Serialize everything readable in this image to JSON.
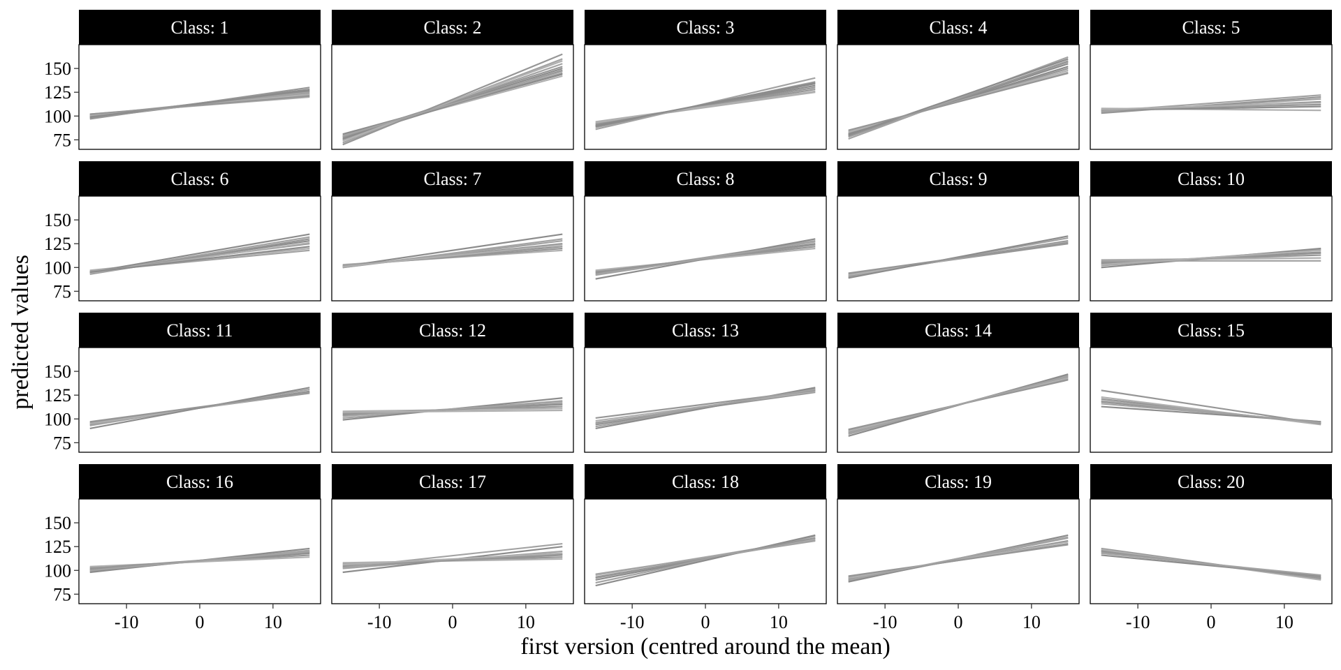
{
  "chart_data": {
    "type": "line",
    "layout": "facet-grid-4x5",
    "xlabel": "first version (centred around the mean)",
    "ylabel": "predicted values",
    "xlim": [
      -16.5,
      16.5
    ],
    "ylim": [
      65,
      175
    ],
    "x_ticks": [
      -10,
      0,
      10
    ],
    "x_tick_labels": [
      "-10",
      "0",
      "10"
    ],
    "y_ticks": [
      75,
      100,
      125,
      150
    ],
    "y_tick_labels": [
      "75",
      "100",
      "125",
      "150"
    ],
    "x_range_lines": [
      -15,
      15
    ],
    "line_colors": [
      "#8c8c8c",
      "#969696",
      "#a3a3a3",
      "#b0b0b0"
    ],
    "panels": [
      {
        "label": "Class: 1",
        "lines": [
          [
            98,
            126
          ],
          [
            100,
            124
          ],
          [
            101,
            122
          ],
          [
            102,
            120
          ],
          [
            99,
            128
          ],
          [
            97,
            130
          ],
          [
            101,
            125
          ],
          [
            100,
            123
          ],
          [
            99,
            127
          ],
          [
            102,
            121
          ]
        ]
      },
      {
        "label": "Class: 2",
        "lines": [
          [
            77,
            150
          ],
          [
            79,
            145
          ],
          [
            75,
            155
          ],
          [
            80,
            142
          ],
          [
            76,
            148
          ],
          [
            78,
            152
          ],
          [
            72,
            160
          ],
          [
            74,
            158
          ],
          [
            81,
            144
          ],
          [
            70,
            165
          ],
          [
            79,
            147
          ]
        ]
      },
      {
        "label": "Class: 3",
        "lines": [
          [
            90,
            132
          ],
          [
            92,
            128
          ],
          [
            88,
            136
          ],
          [
            93,
            125
          ],
          [
            89,
            134
          ],
          [
            91,
            130
          ],
          [
            86,
            140
          ],
          [
            94,
            126
          ],
          [
            90,
            135
          ]
        ]
      },
      {
        "label": "Class: 4",
        "lines": [
          [
            80,
            155
          ],
          [
            82,
            150
          ],
          [
            78,
            158
          ],
          [
            84,
            146
          ],
          [
            81,
            152
          ],
          [
            79,
            157
          ],
          [
            76,
            162
          ],
          [
            83,
            148
          ],
          [
            80,
            160
          ],
          [
            85,
            145
          ]
        ]
      },
      {
        "label": "Class: 5",
        "lines": [
          [
            105,
            115
          ],
          [
            107,
            112
          ],
          [
            104,
            118
          ],
          [
            108,
            106
          ],
          [
            106,
            110
          ],
          [
            103,
            120
          ],
          [
            105,
            122
          ],
          [
            107,
            114
          ]
        ]
      },
      {
        "label": "Class: 6",
        "lines": [
          [
            95,
            128
          ],
          [
            96,
            125
          ],
          [
            94,
            132
          ],
          [
            97,
            120
          ],
          [
            95,
            135
          ],
          [
            93,
            130
          ],
          [
            96,
            118
          ],
          [
            94,
            126
          ],
          [
            95,
            122
          ]
        ]
      },
      {
        "label": "Class: 7",
        "lines": [
          [
            101,
            125
          ],
          [
            102,
            122
          ],
          [
            100,
            128
          ],
          [
            103,
            118
          ],
          [
            101,
            135
          ],
          [
            102,
            120
          ],
          [
            100,
            130
          ],
          [
            101,
            124
          ]
        ]
      },
      {
        "label": "Class: 8",
        "lines": [
          [
            94,
            125
          ],
          [
            96,
            122
          ],
          [
            93,
            128
          ],
          [
            97,
            120
          ],
          [
            88,
            130
          ],
          [
            95,
            124
          ],
          [
            92,
            127
          ]
        ]
      },
      {
        "label": "Class: 9",
        "lines": [
          [
            91,
            128
          ],
          [
            93,
            125
          ],
          [
            90,
            131
          ],
          [
            92,
            127
          ],
          [
            89,
            133
          ],
          [
            94,
            126
          ]
        ]
      },
      {
        "label": "Class: 10",
        "lines": [
          [
            104,
            116
          ],
          [
            106,
            113
          ],
          [
            102,
            119
          ],
          [
            108,
            110
          ],
          [
            100,
            120
          ],
          [
            105,
            115
          ],
          [
            107,
            107
          ],
          [
            103,
            118
          ]
        ]
      },
      {
        "label": "Class: 11",
        "lines": [
          [
            94,
            129
          ],
          [
            96,
            127
          ],
          [
            93,
            131
          ],
          [
            95,
            128
          ],
          [
            90,
            133
          ],
          [
            97,
            128
          ]
        ]
      },
      {
        "label": "Class: 12",
        "lines": [
          [
            104,
            116
          ],
          [
            106,
            113
          ],
          [
            101,
            119
          ],
          [
            108,
            111
          ],
          [
            99,
            122
          ],
          [
            105,
            115
          ],
          [
            103,
            118
          ],
          [
            107,
            109
          ]
        ]
      },
      {
        "label": "Class: 13",
        "lines": [
          [
            94,
            130
          ],
          [
            96,
            128
          ],
          [
            92,
            132
          ],
          [
            98,
            129
          ],
          [
            90,
            133
          ],
          [
            101,
            130
          ],
          [
            95,
            131
          ]
        ]
      },
      {
        "label": "Class: 14",
        "lines": [
          [
            86,
            144
          ],
          [
            88,
            142
          ],
          [
            84,
            146
          ],
          [
            87,
            143
          ],
          [
            82,
            147
          ],
          [
            89,
            141
          ],
          [
            85,
            145
          ]
        ]
      },
      {
        "label": "Class: 15",
        "lines": [
          [
            118,
            96
          ],
          [
            121,
            95
          ],
          [
            116,
            97
          ],
          [
            123,
            94
          ],
          [
            113,
            97
          ],
          [
            130,
            95
          ],
          [
            119,
            96
          ]
        ]
      },
      {
        "label": "Class: 16",
        "lines": [
          [
            101,
            118
          ],
          [
            103,
            116
          ],
          [
            99,
            121
          ],
          [
            104,
            114
          ],
          [
            98,
            123
          ],
          [
            102,
            119
          ],
          [
            100,
            120
          ]
        ]
      },
      {
        "label": "Class: 17",
        "lines": [
          [
            104,
            117
          ],
          [
            107,
            114
          ],
          [
            102,
            120
          ],
          [
            108,
            112
          ],
          [
            98,
            125
          ],
          [
            105,
            116
          ],
          [
            103,
            128
          ],
          [
            106,
            118
          ]
        ]
      },
      {
        "label": "Class: 18",
        "lines": [
          [
            90,
            134
          ],
          [
            93,
            132
          ],
          [
            87,
            136
          ],
          [
            95,
            133
          ],
          [
            84,
            137
          ],
          [
            92,
            134
          ],
          [
            96,
            131
          ]
        ]
      },
      {
        "label": "Class: 19",
        "lines": [
          [
            91,
            131
          ],
          [
            93,
            128
          ],
          [
            89,
            134
          ],
          [
            92,
            130
          ],
          [
            88,
            137
          ],
          [
            94,
            127
          ],
          [
            90,
            135
          ]
        ]
      },
      {
        "label": "Class: 20",
        "lines": [
          [
            121,
            92
          ],
          [
            123,
            91
          ],
          [
            119,
            93
          ],
          [
            122,
            90
          ],
          [
            116,
            94
          ],
          [
            120,
            92
          ],
          [
            118,
            95
          ]
        ]
      }
    ]
  }
}
